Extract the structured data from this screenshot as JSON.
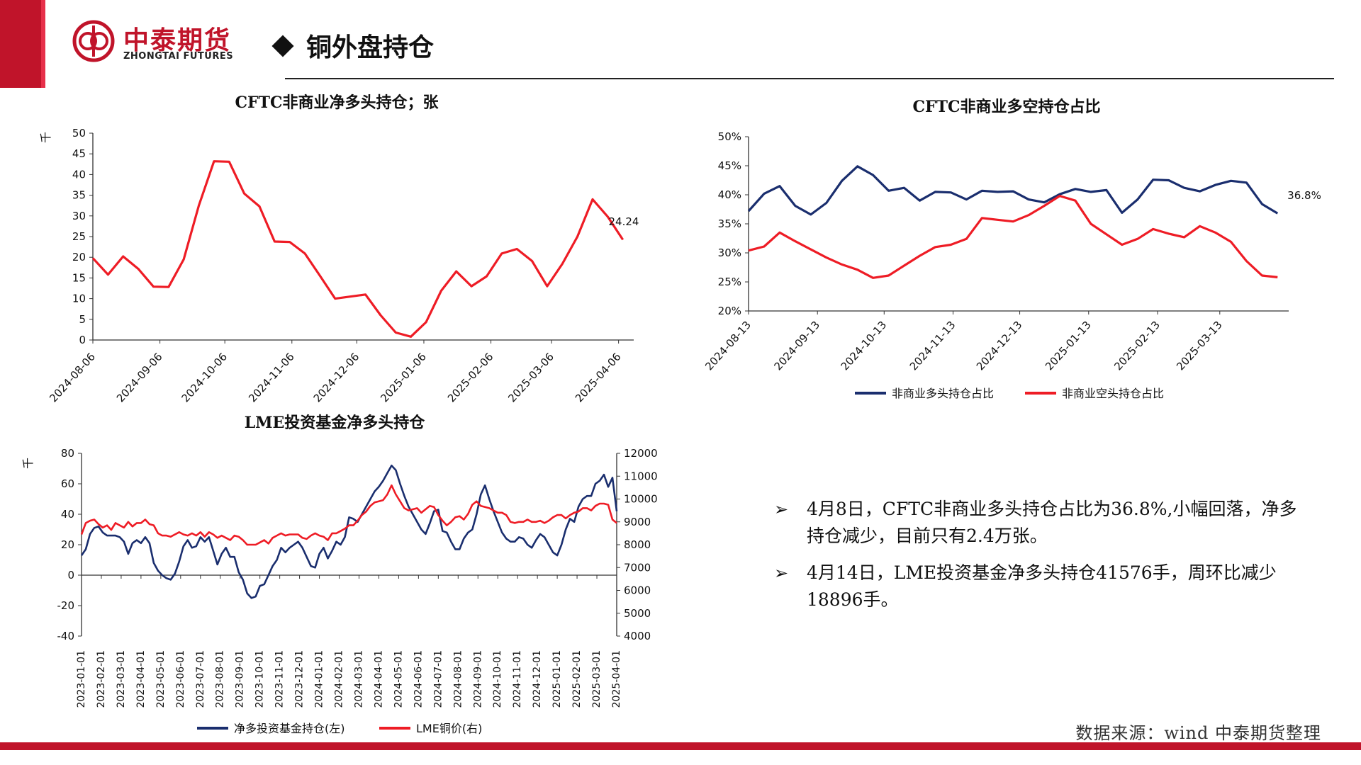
{
  "header": {
    "logo_cn": "中泰期货",
    "logo_en": "ZHONGTAI FUTURES",
    "title": "铜外盘持仓",
    "brand_color": "#c0142a"
  },
  "footer": {
    "source": "数据来源：wind 中泰期货整理"
  },
  "bullets": [
    {
      "icon": "arrow-bullet-icon",
      "symbol": "➢",
      "text": "4月8日，CFTC非商业多头持仓占比为36.8%,小幅回落，净多持仓减少，目前只有2.4万张。"
    },
    {
      "icon": "arrow-bullet-icon",
      "symbol": "➢",
      "text": "4月14日，LME投资基金净多头持仓41576手，周环比减少18896手。"
    }
  ],
  "chart_data": [
    {
      "id": "cftc-net",
      "type": "line",
      "title": "CFTC非商业净多头持仓；张",
      "ylabel": "千",
      "ylim": [
        0,
        50
      ],
      "yticks": [
        0,
        5,
        10,
        15,
        20,
        25,
        30,
        35,
        40,
        45,
        50
      ],
      "xlim": [
        "2024-08-06",
        "2025-04-13"
      ],
      "xticks": [
        "2024-08-06",
        "2024-09-06",
        "2024-10-06",
        "2024-11-06",
        "2024-12-06",
        "2025-01-06",
        "2025-02-06",
        "2025-03-06",
        "2025-04-06"
      ],
      "color": "#ee1c25",
      "end_label": "24.24",
      "x": [
        "2024-08-06",
        "2024-08-13",
        "2024-08-20",
        "2024-08-27",
        "2024-09-03",
        "2024-09-10",
        "2024-09-17",
        "2024-09-24",
        "2024-10-01",
        "2024-10-08",
        "2024-10-15",
        "2024-10-22",
        "2024-10-29",
        "2024-11-05",
        "2024-11-12",
        "2024-11-19",
        "2024-11-26",
        "2024-12-03",
        "2024-12-10",
        "2024-12-17",
        "2024-12-24",
        "2024-12-31",
        "2025-01-07",
        "2025-01-14",
        "2025-01-21",
        "2025-01-28",
        "2025-02-04",
        "2025-02-11",
        "2025-02-18",
        "2025-02-25",
        "2025-03-04",
        "2025-03-11",
        "2025-03-18",
        "2025-03-25",
        "2025-04-01",
        "2025-04-08"
      ],
      "values": [
        19.8,
        15.8,
        20.2,
        17.2,
        12.9,
        12.8,
        19.5,
        32.5,
        43.2,
        43.1,
        35.4,
        32.3,
        23.8,
        23.7,
        20.9,
        15.5,
        10.0,
        10.5,
        11.0,
        6.0,
        1.8,
        0.8,
        4.3,
        11.9,
        16.6,
        13.0,
        15.4,
        20.9,
        22.0,
        19.1,
        13.0,
        18.4,
        25.0,
        34.0,
        29.8,
        24.24
      ]
    },
    {
      "id": "cftc-ratio",
      "type": "line",
      "title": "CFTC非商业多空持仓占比",
      "ylim": [
        20,
        50
      ],
      "yticks": [
        "20%",
        "25%",
        "30%",
        "35%",
        "40%",
        "45%",
        "50%"
      ],
      "xlim": [
        "2024-08-13",
        "2025-04-13"
      ],
      "xticks": [
        "2024-08-13",
        "2024-09-13",
        "2024-10-13",
        "2024-11-13",
        "2024-12-13",
        "2025-01-13",
        "2025-02-13",
        "2025-03-13"
      ],
      "end_label": "36.8%",
      "legend": "bottom",
      "x": [
        "2024-08-13",
        "2024-08-20",
        "2024-08-27",
        "2024-09-03",
        "2024-09-10",
        "2024-09-17",
        "2024-09-24",
        "2024-10-01",
        "2024-10-08",
        "2024-10-15",
        "2024-10-22",
        "2024-10-29",
        "2024-11-05",
        "2024-11-12",
        "2024-11-19",
        "2024-11-26",
        "2024-12-03",
        "2024-12-10",
        "2024-12-17",
        "2024-12-24",
        "2024-12-31",
        "2025-01-07",
        "2025-01-14",
        "2025-01-21",
        "2025-01-28",
        "2025-02-04",
        "2025-02-11",
        "2025-02-18",
        "2025-02-25",
        "2025-03-04",
        "2025-03-11",
        "2025-03-18",
        "2025-03-25",
        "2025-04-01",
        "2025-04-08"
      ],
      "series": [
        {
          "name": "非商业多头持仓占比",
          "color": "#1a2e6e",
          "values": [
            37.2,
            40.2,
            41.5,
            38.1,
            36.6,
            38.6,
            42.4,
            44.9,
            43.4,
            40.7,
            41.2,
            39.0,
            40.5,
            40.4,
            39.2,
            40.7,
            40.5,
            40.6,
            39.2,
            38.7,
            40.1,
            41.0,
            40.5,
            40.8,
            36.9,
            39.2,
            42.6,
            42.5,
            41.2,
            40.6,
            41.7,
            42.4,
            42.1,
            38.4,
            36.8
          ]
        },
        {
          "name": "非商业空头持仓占比",
          "color": "#ee1c25",
          "values": [
            30.4,
            31.1,
            33.5,
            32.0,
            30.6,
            29.2,
            28.0,
            27.1,
            25.7,
            26.1,
            27.8,
            29.5,
            31.0,
            31.4,
            32.4,
            36.0,
            35.7,
            35.4,
            36.5,
            38.1,
            39.8,
            39.0,
            35.0,
            33.2,
            31.4,
            32.4,
            34.1,
            33.3,
            32.7,
            34.6,
            33.5,
            31.9,
            28.6,
            26.1,
            25.8
          ]
        }
      ]
    },
    {
      "id": "lme-funds",
      "type": "line",
      "title": "LME投资基金净多头持仓",
      "ylabel": "千",
      "ylim": [
        -40,
        80
      ],
      "yticks": [
        -40,
        -20,
        0,
        20,
        40,
        60,
        80
      ],
      "y2lim": [
        4000,
        12000
      ],
      "y2ticks": [
        4000,
        5000,
        6000,
        7000,
        8000,
        9000,
        10000,
        11000,
        12000
      ],
      "xlim": [
        "2023-01-01",
        "2025-04-14"
      ],
      "xticks": [
        "2023-01-01",
        "2023-02-01",
        "2023-03-01",
        "2023-04-01",
        "2023-05-01",
        "2023-06-01",
        "2023-07-01",
        "2023-08-01",
        "2023-09-01",
        "2023-10-01",
        "2023-11-01",
        "2023-12-01",
        "2024-01-01",
        "2024-02-01",
        "2024-03-01",
        "2024-04-01",
        "2024-05-01",
        "2024-06-01",
        "2024-07-01",
        "2024-08-01",
        "2024-09-01",
        "2024-10-01",
        "2024-11-01",
        "2024-12-01",
        "2025-01-01",
        "2025-02-01",
        "2025-03-01",
        "2025-04-01"
      ],
      "legend": "bottom",
      "series": [
        {
          "name": "净多投资基金持仓(左)",
          "axis": "left",
          "color": "#1a2e6e",
          "values": [
            13,
            17,
            27,
            31,
            32,
            28,
            26,
            26,
            26,
            25,
            22,
            14,
            21,
            23,
            21,
            25,
            21,
            8,
            3,
            0,
            -2,
            -3,
            1,
            9,
            19,
            23,
            18,
            19,
            25,
            22,
            25,
            16,
            7,
            14,
            18,
            12,
            12,
            2,
            -3,
            -12,
            -15,
            -14,
            -7,
            -6,
            0,
            6,
            10,
            18,
            15,
            18,
            20,
            22,
            18,
            12,
            6,
            5,
            14,
            18,
            11,
            16,
            22,
            20,
            25,
            38,
            37,
            35,
            40,
            45,
            50,
            55,
            58,
            62,
            67,
            72,
            69,
            60,
            52,
            45,
            40,
            35,
            30,
            27,
            34,
            42,
            43,
            29,
            28,
            22,
            17,
            17,
            24,
            28,
            30,
            40,
            53,
            59,
            50,
            42,
            35,
            28,
            24,
            22,
            22,
            25,
            24,
            20,
            18,
            23,
            27,
            25,
            20,
            15,
            13,
            20,
            30,
            37,
            35,
            45,
            50,
            52,
            52,
            60,
            62,
            66,
            58,
            64,
            42
          ]
        },
        {
          "name": "LME铜价(右)",
          "axis": "right",
          "color": "#ee1c25",
          "values": [
            8450,
            8950,
            9050,
            9100,
            8900,
            8750,
            8850,
            8650,
            8950,
            8850,
            8750,
            9000,
            8800,
            8950,
            8950,
            9100,
            8900,
            8850,
            8500,
            8400,
            8400,
            8350,
            8450,
            8550,
            8450,
            8400,
            8500,
            8400,
            8550,
            8350,
            8550,
            8450,
            8300,
            8400,
            8300,
            8200,
            8400,
            8350,
            8200,
            8000,
            8000,
            8000,
            8100,
            8200,
            8050,
            8300,
            8400,
            8500,
            8400,
            8450,
            8450,
            8450,
            8300,
            8250,
            8400,
            8500,
            8400,
            8350,
            8200,
            8500,
            8500,
            8600,
            8700,
            8850,
            8850,
            9050,
            9300,
            9450,
            9700,
            9850,
            9900,
            9950,
            10200,
            10600,
            10200,
            9900,
            9600,
            9500,
            9550,
            9600,
            9400,
            9550,
            9700,
            9650,
            9300,
            9050,
            8850,
            9000,
            9200,
            9250,
            9100,
            9350,
            9750,
            9900,
            9700,
            9650,
            9600,
            9500,
            9400,
            9400,
            9300,
            9000,
            8950,
            9000,
            9000,
            9100,
            9000,
            9000,
            9050,
            8950,
            9050,
            9200,
            9300,
            9300,
            9150,
            9300,
            9400,
            9450,
            9600,
            9600,
            9500,
            9700,
            9800,
            9800,
            9750,
            9100,
            8950
          ]
        }
      ]
    }
  ]
}
